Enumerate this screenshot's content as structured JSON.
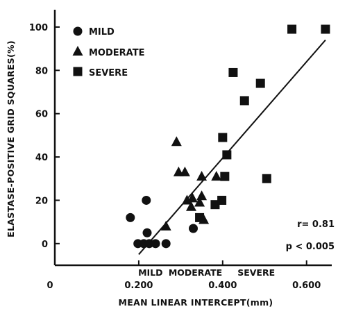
{
  "chart_data": {
    "type": "scatter",
    "xlabel": "MEAN LINEAR INTERCEPT(mm)",
    "ylabel": "ELASTASE-POSITIVE GRID SQUARES(%)",
    "xlim": [
      0.0,
      0.66
    ],
    "ylim": [
      -10,
      108
    ],
    "x_origin_label": "0",
    "x_ticks": [
      {
        "value": 0.2,
        "label": "0.200"
      },
      {
        "value": 0.4,
        "label": "0.400"
      },
      {
        "value": 0.6,
        "label": "0.600"
      }
    ],
    "y_ticks": [
      {
        "value": 0,
        "label": "0"
      },
      {
        "value": 20,
        "label": "20"
      },
      {
        "value": 40,
        "label": "40"
      },
      {
        "value": 60,
        "label": "60"
      },
      {
        "value": 80,
        "label": "80"
      },
      {
        "value": 100,
        "label": "100"
      }
    ],
    "legend_position": "top-left",
    "series": [
      {
        "name": "MILD",
        "marker": "circle",
        "points": [
          {
            "x": 0.18,
            "y": 12
          },
          {
            "x": 0.198,
            "y": 0
          },
          {
            "x": 0.212,
            "y": 0
          },
          {
            "x": 0.218,
            "y": 20
          },
          {
            "x": 0.22,
            "y": 5
          },
          {
            "x": 0.225,
            "y": 0
          },
          {
            "x": 0.24,
            "y": 0
          },
          {
            "x": 0.265,
            "y": 0
          },
          {
            "x": 0.33,
            "y": 7
          }
        ]
      },
      {
        "name": "MODERATE",
        "marker": "triangle",
        "points": [
          {
            "x": 0.265,
            "y": 8
          },
          {
            "x": 0.29,
            "y": 47
          },
          {
            "x": 0.295,
            "y": 33
          },
          {
            "x": 0.31,
            "y": 33
          },
          {
            "x": 0.315,
            "y": 20
          },
          {
            "x": 0.325,
            "y": 17
          },
          {
            "x": 0.328,
            "y": 21
          },
          {
            "x": 0.345,
            "y": 19
          },
          {
            "x": 0.35,
            "y": 22
          },
          {
            "x": 0.35,
            "y": 31
          },
          {
            "x": 0.355,
            "y": 11
          },
          {
            "x": 0.385,
            "y": 31
          }
        ]
      },
      {
        "name": "SEVERE",
        "marker": "square",
        "points": [
          {
            "x": 0.345,
            "y": 12
          },
          {
            "x": 0.382,
            "y": 18
          },
          {
            "x": 0.398,
            "y": 20
          },
          {
            "x": 0.4,
            "y": 49
          },
          {
            "x": 0.405,
            "y": 31
          },
          {
            "x": 0.41,
            "y": 41
          },
          {
            "x": 0.425,
            "y": 79
          },
          {
            "x": 0.452,
            "y": 66
          },
          {
            "x": 0.49,
            "y": 74
          },
          {
            "x": 0.505,
            "y": 30
          },
          {
            "x": 0.565,
            "y": 99
          },
          {
            "x": 0.645,
            "y": 99
          }
        ]
      }
    ],
    "regression_line": {
      "x": [
        0.2,
        0.645
      ],
      "y": [
        -5,
        94
      ]
    },
    "annotations": [
      {
        "text": "r= 0.81"
      },
      {
        "text": "p < 0.005"
      }
    ],
    "category_labels": [
      {
        "text": "MILD",
        "x": 0.228
      },
      {
        "text": "MODERATE",
        "x": 0.335
      },
      {
        "text": "SEVERE",
        "x": 0.48
      }
    ]
  }
}
